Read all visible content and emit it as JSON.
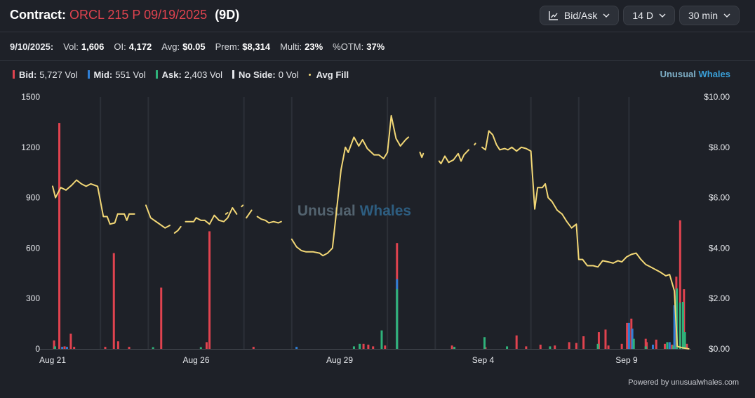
{
  "header": {
    "contract_label": "Contract:",
    "contract": "ORCL 215 P 09/19/2025",
    "dte": "(9D)",
    "controls": [
      {
        "label": "Bid/Ask",
        "icon": "line-chart-icon"
      },
      {
        "label": "14 D"
      },
      {
        "label": "30 min"
      }
    ]
  },
  "stats": {
    "date": "9/10/2025:",
    "items": [
      {
        "label": "Vol:",
        "value": "1,606"
      },
      {
        "label": "OI:",
        "value": "4,172"
      },
      {
        "label": "Avg:",
        "value": "$0.05"
      },
      {
        "label": "Prem:",
        "value": "$8,314"
      },
      {
        "label": "Multi:",
        "value": "23%"
      },
      {
        "label": "%OTM:",
        "value": "37%"
      }
    ]
  },
  "legend": [
    {
      "name": "Bid:",
      "value": "5,727 Vol",
      "color": "#e0434f"
    },
    {
      "name": "Mid:",
      "value": "551 Vol",
      "color": "#2f7fd6"
    },
    {
      "name": "Ask:",
      "value": "2,403 Vol",
      "color": "#2fb27a"
    },
    {
      "name": "No Side:",
      "value": "0 Vol",
      "color": "#e6e8ec"
    },
    {
      "name": "Avg Fill",
      "value": "",
      "color": "#f2d776",
      "marker": "dot"
    }
  ],
  "brand": {
    "part1": "Unusual",
    "part2": "Whales"
  },
  "watermark": {
    "part1": "Unusual",
    "part2": "Whales"
  },
  "footer": {
    "powered": "Powered by unusualwhales.com"
  },
  "colors": {
    "bid": "#e0434f",
    "mid": "#2f7fd6",
    "ask": "#2fb27a",
    "avg_fill": "#f2d776",
    "background": "#1e2128"
  },
  "chart_data": {
    "type": "bar",
    "x_tick_labels": [
      "Aug 21",
      "Aug 26",
      "Aug 29",
      "Sep 4",
      "Sep 9"
    ],
    "x_tick_positions": [
      0,
      3,
      6,
      9,
      12
    ],
    "x_range": [
      0,
      13.35
    ],
    "y_left": {
      "ticks": [
        "0",
        "300",
        "600",
        "900",
        "1200",
        "1500"
      ],
      "range": [
        0,
        1500
      ]
    },
    "y_right": {
      "ticks": [
        "$0.00",
        "$2.00",
        "$4.00",
        "$6.00",
        "$8.00",
        "$10.00"
      ],
      "range": [
        0,
        10
      ]
    },
    "vertical_grid_days": [
      1,
      2,
      4,
      5,
      7,
      8,
      10,
      11,
      12.05
    ],
    "series": [
      {
        "name": "Bid",
        "bars": [
          [
            0.03,
            50
          ],
          [
            0.14,
            1345
          ],
          [
            0.38,
            90
          ],
          [
            1.28,
            570
          ],
          [
            1.37,
            45
          ],
          [
            2.27,
            365
          ],
          [
            3.28,
            700
          ],
          [
            3.22,
            40
          ],
          [
            7.2,
            630
          ],
          [
            9.7,
            80
          ],
          [
            10.8,
            40
          ],
          [
            11.1,
            75
          ],
          [
            11.42,
            100
          ],
          [
            11.56,
            115
          ],
          [
            12.01,
            155
          ],
          [
            12.1,
            180
          ],
          [
            12.4,
            60
          ],
          [
            12.42,
            40
          ],
          [
            12.62,
            55
          ],
          [
            13.04,
            430
          ],
          [
            13.12,
            765
          ],
          [
            13.2,
            355
          ],
          [
            13.26,
            30
          ],
          [
            0.25,
            15
          ],
          [
            0.45,
            12
          ],
          [
            1.1,
            12
          ],
          [
            1.6,
            12
          ],
          [
            4.2,
            12
          ],
          [
            6.5,
            30
          ],
          [
            6.6,
            25
          ],
          [
            6.95,
            20
          ],
          [
            8.35,
            20
          ],
          [
            9.05,
            10
          ],
          [
            9.9,
            15
          ],
          [
            10.2,
            25
          ],
          [
            10.5,
            20
          ],
          [
            10.95,
            35
          ],
          [
            11.62,
            20
          ],
          [
            11.9,
            30
          ],
          [
            12.8,
            30
          ],
          [
            12.95,
            25
          ],
          [
            6.7,
            15
          ]
        ]
      },
      {
        "name": "Mid",
        "bars": [
          [
            7.2,
            415
          ],
          [
            12.05,
            155
          ],
          [
            12.12,
            120
          ],
          [
            12.9,
            40
          ],
          [
            13.0,
            260
          ],
          [
            12.55,
            25
          ],
          [
            0.2,
            12
          ],
          [
            0.3,
            12
          ],
          [
            5.1,
            12
          ]
        ]
      },
      {
        "name": "Ask",
        "bars": [
          [
            7.2,
            355
          ],
          [
            13.05,
            360
          ],
          [
            13.12,
            275
          ],
          [
            13.18,
            280
          ],
          [
            13.22,
            100
          ],
          [
            6.88,
            110
          ],
          [
            9.03,
            70
          ],
          [
            6.42,
            30
          ],
          [
            12.15,
            60
          ],
          [
            12.85,
            40
          ],
          [
            12.98,
            20
          ],
          [
            0.05,
            15
          ],
          [
            6.3,
            15
          ],
          [
            8.4,
            12
          ],
          [
            9.5,
            15
          ],
          [
            12.4,
            15
          ],
          [
            2.1,
            10
          ],
          [
            3.1,
            10
          ],
          [
            10.4,
            15
          ],
          [
            11.4,
            30
          ]
        ]
      }
    ],
    "avg_fill": [
      [
        [
          0.0,
          6.45
        ],
        [
          0.06,
          6.0
        ],
        [
          0.17,
          6.4
        ],
        [
          0.28,
          6.3
        ],
        [
          0.4,
          6.5
        ],
        [
          0.5,
          6.7
        ],
        [
          0.6,
          6.55
        ],
        [
          0.7,
          6.45
        ],
        [
          0.8,
          6.55
        ],
        [
          0.94,
          6.45
        ],
        [
          1.06,
          5.25
        ],
        [
          1.14,
          5.25
        ],
        [
          1.2,
          4.95
        ],
        [
          1.3,
          5.0
        ],
        [
          1.36,
          5.35
        ],
        [
          1.5,
          5.35
        ],
        [
          1.55,
          5.1
        ],
        [
          1.6,
          5.35
        ],
        [
          1.71,
          5.35
        ]
      ],
      [
        [
          1.95,
          5.7
        ],
        [
          2.05,
          5.2
        ],
        [
          2.2,
          5.0
        ],
        [
          2.35,
          4.8
        ],
        [
          2.45,
          4.9
        ]
      ],
      [
        [
          2.55,
          4.6
        ],
        [
          2.62,
          4.7
        ],
        [
          2.68,
          4.85
        ]
      ],
      [
        [
          2.78,
          5.05
        ],
        [
          2.95,
          5.05
        ],
        [
          3.0,
          5.2
        ],
        [
          3.1,
          5.1
        ],
        [
          3.18,
          5.1
        ],
        [
          3.28,
          4.95
        ],
        [
          3.38,
          5.3
        ],
        [
          3.48,
          5.1
        ],
        [
          3.58,
          5.05
        ],
        [
          3.66,
          5.2
        ],
        [
          3.76,
          5.6
        ],
        [
          3.85,
          5.35
        ]
      ],
      [
        [
          3.62,
          5.35
        ],
        [
          3.66,
          5.4
        ]
      ],
      [
        [
          3.95,
          5.65
        ],
        [
          3.98,
          5.7
        ]
      ],
      [
        [
          4.05,
          5.2
        ],
        [
          4.16,
          5.5
        ]
      ],
      [
        [
          4.28,
          5.25
        ],
        [
          4.36,
          5.15
        ],
        [
          4.45,
          5.1
        ],
        [
          4.52,
          5.0
        ],
        [
          4.62,
          5.05
        ],
        [
          4.72,
          5.0
        ],
        [
          4.78,
          5.05
        ]
      ],
      [
        [
          5.0,
          4.35
        ],
        [
          5.1,
          4.05
        ],
        [
          5.2,
          3.9
        ],
        [
          5.3,
          3.85
        ],
        [
          5.45,
          3.85
        ],
        [
          5.58,
          3.8
        ],
        [
          5.65,
          3.7
        ],
        [
          5.75,
          3.8
        ],
        [
          5.85,
          4.0
        ],
        [
          6.03,
          7.1
        ],
        [
          6.12,
          8.0
        ],
        [
          6.18,
          7.8
        ],
        [
          6.3,
          8.4
        ],
        [
          6.4,
          8.05
        ],
        [
          6.48,
          8.3
        ],
        [
          6.58,
          7.95
        ],
        [
          6.72,
          7.7
        ],
        [
          6.82,
          7.7
        ],
        [
          6.92,
          7.55
        ],
        [
          7.0,
          7.8
        ],
        [
          7.08,
          9.25
        ],
        [
          7.18,
          8.35
        ],
        [
          7.27,
          8.05
        ],
        [
          7.38,
          8.3
        ],
        [
          7.44,
          8.4
        ]
      ],
      [
        [
          7.68,
          7.8
        ],
        [
          7.72,
          7.6
        ],
        [
          7.75,
          7.75
        ]
      ],
      [
        [
          8.08,
          7.45
        ],
        [
          8.12,
          7.35
        ],
        [
          8.2,
          7.65
        ],
        [
          8.28,
          7.4
        ],
        [
          8.38,
          7.5
        ],
        [
          8.48,
          7.75
        ],
        [
          8.54,
          7.45
        ],
        [
          8.6,
          7.7
        ],
        [
          8.7,
          7.9
        ]
      ],
      [
        [
          8.82,
          8.1
        ],
        [
          8.84,
          8.15
        ]
      ],
      [
        [
          8.98,
          8.0
        ],
        [
          9.05,
          7.9
        ],
        [
          9.12,
          8.65
        ],
        [
          9.2,
          8.5
        ],
        [
          9.28,
          8.1
        ],
        [
          9.35,
          7.9
        ],
        [
          9.45,
          7.95
        ],
        [
          9.52,
          7.9
        ],
        [
          9.6,
          8.0
        ],
        [
          9.7,
          7.85
        ],
        [
          9.8,
          8.0
        ],
        [
          9.9,
          7.95
        ],
        [
          10.0,
          7.85
        ],
        [
          10.08,
          5.55
        ],
        [
          10.14,
          6.4
        ],
        [
          10.24,
          6.4
        ],
        [
          10.3,
          6.55
        ],
        [
          10.36,
          6.0
        ],
        [
          10.44,
          5.85
        ],
        [
          10.55,
          5.5
        ],
        [
          10.65,
          5.35
        ],
        [
          10.75,
          5.05
        ],
        [
          10.85,
          4.8
        ],
        [
          10.95,
          4.95
        ],
        [
          11.0,
          3.55
        ],
        [
          11.08,
          3.55
        ],
        [
          11.18,
          3.3
        ],
        [
          11.3,
          3.3
        ],
        [
          11.4,
          3.25
        ],
        [
          11.5,
          3.5
        ],
        [
          11.62,
          3.45
        ],
        [
          11.72,
          3.4
        ],
        [
          11.82,
          3.5
        ],
        [
          11.9,
          3.45
        ],
        [
          12.0,
          3.65
        ],
        [
          12.1,
          3.75
        ],
        [
          12.2,
          3.8
        ],
        [
          12.3,
          3.55
        ],
        [
          12.4,
          3.35
        ],
        [
          12.5,
          3.25
        ],
        [
          12.6,
          3.15
        ],
        [
          12.7,
          3.05
        ],
        [
          12.82,
          2.9
        ],
        [
          12.9,
          2.95
        ],
        [
          13.0,
          2.3
        ],
        [
          13.06,
          0.1
        ],
        [
          13.15,
          0.05
        ],
        [
          13.3,
          0.0
        ]
      ]
    ]
  }
}
